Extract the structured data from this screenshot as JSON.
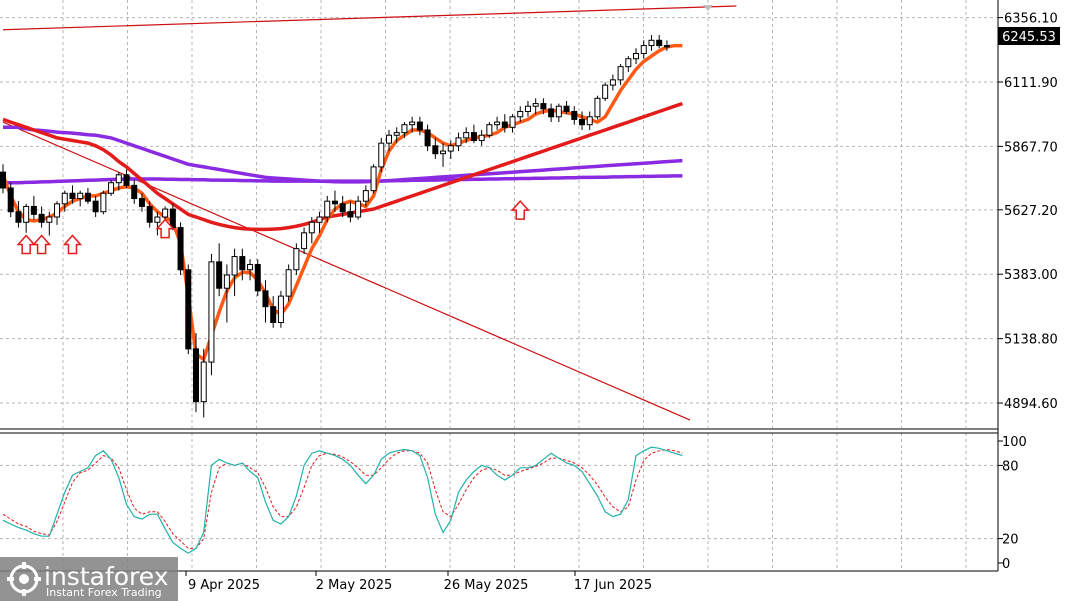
{
  "chart_data": [
    {
      "type": "candlestick",
      "title": "",
      "ylim": [
        4800,
        6400
      ],
      "y_ticks": [
        "6356.10",
        "6111.90",
        "5867.70",
        "5627.20",
        "5383.00",
        "5138.80",
        "4894.60"
      ],
      "current_price": "6245.53",
      "x_labels": [
        "9 Apr 2025",
        "2 May 2025",
        "26 May 2025",
        "17 Jun 2025"
      ],
      "grid": true,
      "candles": [
        {
          "o": 5770,
          "h": 5800,
          "l": 5690,
          "c": 5710
        },
        {
          "o": 5710,
          "h": 5730,
          "l": 5600,
          "c": 5620
        },
        {
          "o": 5620,
          "h": 5660,
          "l": 5560,
          "c": 5580
        },
        {
          "o": 5580,
          "h": 5650,
          "l": 5540,
          "c": 5640
        },
        {
          "o": 5640,
          "h": 5680,
          "l": 5590,
          "c": 5610
        },
        {
          "o": 5610,
          "h": 5640,
          "l": 5560,
          "c": 5580
        },
        {
          "o": 5580,
          "h": 5620,
          "l": 5530,
          "c": 5600
        },
        {
          "o": 5600,
          "h": 5660,
          "l": 5570,
          "c": 5650
        },
        {
          "o": 5650,
          "h": 5700,
          "l": 5620,
          "c": 5690
        },
        {
          "o": 5690,
          "h": 5720,
          "l": 5650,
          "c": 5670
        },
        {
          "o": 5670,
          "h": 5700,
          "l": 5640,
          "c": 5690
        },
        {
          "o": 5690,
          "h": 5710,
          "l": 5650,
          "c": 5660
        },
        {
          "o": 5660,
          "h": 5680,
          "l": 5600,
          "c": 5620
        },
        {
          "o": 5620,
          "h": 5700,
          "l": 5610,
          "c": 5690
        },
        {
          "o": 5690,
          "h": 5740,
          "l": 5680,
          "c": 5730
        },
        {
          "o": 5730,
          "h": 5770,
          "l": 5700,
          "c": 5760
        },
        {
          "o": 5760,
          "h": 5780,
          "l": 5710,
          "c": 5720
        },
        {
          "o": 5720,
          "h": 5740,
          "l": 5650,
          "c": 5670
        },
        {
          "o": 5670,
          "h": 5690,
          "l": 5620,
          "c": 5640
        },
        {
          "o": 5640,
          "h": 5660,
          "l": 5560,
          "c": 5580
        },
        {
          "o": 5580,
          "h": 5620,
          "l": 5530,
          "c": 5600
        },
        {
          "o": 5600,
          "h": 5640,
          "l": 5570,
          "c": 5630
        },
        {
          "o": 5630,
          "h": 5650,
          "l": 5550,
          "c": 5560
        },
        {
          "o": 5560,
          "h": 5580,
          "l": 5380,
          "c": 5400
        },
        {
          "o": 5400,
          "h": 5420,
          "l": 5080,
          "c": 5100
        },
        {
          "o": 5100,
          "h": 5160,
          "l": 4860,
          "c": 4900
        },
        {
          "o": 4900,
          "h": 5100,
          "l": 4840,
          "c": 5050
        },
        {
          "o": 5050,
          "h": 5460,
          "l": 5000,
          "c": 5430
        },
        {
          "o": 5430,
          "h": 5500,
          "l": 5300,
          "c": 5330
        },
        {
          "o": 5330,
          "h": 5420,
          "l": 5200,
          "c": 5380
        },
        {
          "o": 5380,
          "h": 5480,
          "l": 5300,
          "c": 5450
        },
        {
          "o": 5450,
          "h": 5480,
          "l": 5360,
          "c": 5400
        },
        {
          "o": 5400,
          "h": 5440,
          "l": 5360,
          "c": 5420
        },
        {
          "o": 5420,
          "h": 5440,
          "l": 5300,
          "c": 5320
        },
        {
          "o": 5320,
          "h": 5360,
          "l": 5200,
          "c": 5260
        },
        {
          "o": 5260,
          "h": 5300,
          "l": 5180,
          "c": 5200
        },
        {
          "o": 5200,
          "h": 5320,
          "l": 5180,
          "c": 5300
        },
        {
          "o": 5300,
          "h": 5420,
          "l": 5280,
          "c": 5400
        },
        {
          "o": 5400,
          "h": 5500,
          "l": 5380,
          "c": 5480
        },
        {
          "o": 5480,
          "h": 5560,
          "l": 5460,
          "c": 5540
        },
        {
          "o": 5540,
          "h": 5600,
          "l": 5500,
          "c": 5580
        },
        {
          "o": 5580,
          "h": 5620,
          "l": 5540,
          "c": 5600
        },
        {
          "o": 5600,
          "h": 5680,
          "l": 5580,
          "c": 5660
        },
        {
          "o": 5660,
          "h": 5700,
          "l": 5620,
          "c": 5650
        },
        {
          "o": 5650,
          "h": 5680,
          "l": 5600,
          "c": 5620
        },
        {
          "o": 5620,
          "h": 5660,
          "l": 5580,
          "c": 5600
        },
        {
          "o": 5600,
          "h": 5680,
          "l": 5590,
          "c": 5660
        },
        {
          "o": 5660,
          "h": 5720,
          "l": 5640,
          "c": 5700
        },
        {
          "o": 5700,
          "h": 5800,
          "l": 5690,
          "c": 5790
        },
        {
          "o": 5790,
          "h": 5900,
          "l": 5770,
          "c": 5880
        },
        {
          "o": 5880,
          "h": 5930,
          "l": 5850,
          "c": 5910
        },
        {
          "o": 5910,
          "h": 5940,
          "l": 5880,
          "c": 5920
        },
        {
          "o": 5920,
          "h": 5960,
          "l": 5900,
          "c": 5950
        },
        {
          "o": 5950,
          "h": 5980,
          "l": 5920,
          "c": 5960
        },
        {
          "o": 5960,
          "h": 5980,
          "l": 5910,
          "c": 5930
        },
        {
          "o": 5930,
          "h": 5950,
          "l": 5850,
          "c": 5870
        },
        {
          "o": 5870,
          "h": 5900,
          "l": 5820,
          "c": 5840
        },
        {
          "o": 5840,
          "h": 5880,
          "l": 5790,
          "c": 5850
        },
        {
          "o": 5850,
          "h": 5890,
          "l": 5820,
          "c": 5870
        },
        {
          "o": 5870,
          "h": 5920,
          "l": 5850,
          "c": 5900
        },
        {
          "o": 5900,
          "h": 5940,
          "l": 5880,
          "c": 5920
        },
        {
          "o": 5920,
          "h": 5950,
          "l": 5880,
          "c": 5890
        },
        {
          "o": 5890,
          "h": 5930,
          "l": 5870,
          "c": 5910
        },
        {
          "o": 5910,
          "h": 5960,
          "l": 5900,
          "c": 5950
        },
        {
          "o": 5950,
          "h": 5980,
          "l": 5930,
          "c": 5960
        },
        {
          "o": 5960,
          "h": 5990,
          "l": 5920,
          "c": 5940
        },
        {
          "o": 5940,
          "h": 5990,
          "l": 5920,
          "c": 5980
        },
        {
          "o": 5980,
          "h": 6020,
          "l": 5960,
          "c": 6000
        },
        {
          "o": 6000,
          "h": 6040,
          "l": 5980,
          "c": 6020
        },
        {
          "o": 6020,
          "h": 6050,
          "l": 5990,
          "c": 6030
        },
        {
          "o": 6030,
          "h": 6050,
          "l": 5990,
          "c": 6010
        },
        {
          "o": 6010,
          "h": 6030,
          "l": 5960,
          "c": 5980
        },
        {
          "o": 5980,
          "h": 6030,
          "l": 5960,
          "c": 6020
        },
        {
          "o": 6020,
          "h": 6040,
          "l": 5990,
          "c": 6000
        },
        {
          "o": 6000,
          "h": 6020,
          "l": 5950,
          "c": 5970
        },
        {
          "o": 5970,
          "h": 6000,
          "l": 5930,
          "c": 5950
        },
        {
          "o": 5950,
          "h": 6000,
          "l": 5930,
          "c": 5980
        },
        {
          "o": 5980,
          "h": 6060,
          "l": 5970,
          "c": 6050
        },
        {
          "o": 6050,
          "h": 6110,
          "l": 6040,
          "c": 6100
        },
        {
          "o": 6100,
          "h": 6140,
          "l": 6080,
          "c": 6120
        },
        {
          "o": 6120,
          "h": 6180,
          "l": 6100,
          "c": 6170
        },
        {
          "o": 6170,
          "h": 6210,
          "l": 6150,
          "c": 6200
        },
        {
          "o": 6200,
          "h": 6240,
          "l": 6180,
          "c": 6220
        },
        {
          "o": 6220,
          "h": 6270,
          "l": 6200,
          "c": 6250
        },
        {
          "o": 6250,
          "h": 6290,
          "l": 6230,
          "c": 6270
        },
        {
          "o": 6270,
          "h": 6290,
          "l": 6240,
          "c": 6250
        },
        {
          "o": 6250,
          "h": 6270,
          "l": 6230,
          "c": 6245
        }
      ],
      "ma_fast": [
        5760,
        5680,
        5620,
        5590,
        5585,
        5590,
        5600,
        5615,
        5640,
        5660,
        5670,
        5680,
        5680,
        5690,
        5700,
        5710,
        5715,
        5710,
        5690,
        5650,
        5620,
        5600,
        5580,
        5500,
        5300,
        5080,
        5060,
        5150,
        5240,
        5320,
        5370,
        5390,
        5390,
        5360,
        5310,
        5250,
        5230,
        5270,
        5340,
        5410,
        5480,
        5530,
        5590,
        5630,
        5650,
        5660,
        5650,
        5640,
        5680,
        5780,
        5850,
        5890,
        5910,
        5930,
        5930,
        5920,
        5900,
        5880,
        5870,
        5880,
        5890,
        5900,
        5905,
        5910,
        5920,
        5940,
        5950,
        5960,
        5970,
        5990,
        6000,
        6005,
        6000,
        5995,
        5990,
        5980,
        5970,
        5960,
        5980,
        6030,
        6080,
        6120,
        6160,
        6190,
        6210,
        6230,
        6245,
        6250,
        6250
      ],
      "ma_red": [
        5970,
        5960,
        5950,
        5940,
        5930,
        5920,
        5910,
        5900,
        5895,
        5890,
        5885,
        5880,
        5870,
        5855,
        5835,
        5810,
        5790,
        5765,
        5740,
        5715,
        5690,
        5670,
        5650,
        5630,
        5610,
        5600,
        5590,
        5580,
        5572,
        5565,
        5560,
        5556,
        5554,
        5553,
        5553,
        5554,
        5556,
        5560,
        5565,
        5572,
        5580,
        5590,
        5600,
        5605,
        5610,
        5615,
        5620,
        5625,
        5630,
        5640,
        5650,
        5660,
        5670,
        5680,
        5690,
        5700,
        5710,
        5720,
        5730,
        5740,
        5750,
        5760,
        5770,
        5780,
        5790,
        5800,
        5810,
        5820,
        5830,
        5840,
        5850,
        5860,
        5870,
        5880,
        5890,
        5900,
        5910,
        5920,
        5930,
        5940,
        5950,
        5960,
        5970,
        5980,
        5990,
        6000,
        6010,
        6020,
        6030
      ],
      "ma_purple1": [
        5940,
        5940,
        5940,
        5935,
        5930,
        5928,
        5925,
        5922,
        5920,
        5918,
        5915,
        5912,
        5910,
        5905,
        5900,
        5890,
        5880,
        5870,
        5860,
        5850,
        5840,
        5830,
        5820,
        5810,
        5800,
        5795,
        5790,
        5785,
        5780,
        5775,
        5770,
        5765,
        5760,
        5755,
        5750,
        5748,
        5746,
        5744,
        5742,
        5740,
        5738,
        5736,
        5735,
        5734,
        5733,
        5733,
        5733,
        5734,
        5735,
        5736,
        5738,
        5740,
        5742,
        5744,
        5746,
        5748,
        5750,
        5752,
        5754,
        5756,
        5758,
        5760,
        5762,
        5764,
        5766,
        5768,
        5770,
        5772,
        5774,
        5776,
        5778,
        5780,
        5782,
        5784,
        5786,
        5788,
        5790,
        5792,
        5794,
        5796,
        5798,
        5800,
        5802,
        5804,
        5806,
        5808,
        5810,
        5812,
        5814
      ],
      "ma_purple2": [
        5730,
        5730,
        5730,
        5731,
        5732,
        5733,
        5734,
        5735,
        5736,
        5737,
        5738,
        5739,
        5740,
        5741,
        5742,
        5743,
        5744,
        5744,
        5744,
        5744,
        5744,
        5743,
        5743,
        5742,
        5742,
        5741,
        5741,
        5740,
        5740,
        5739,
        5739,
        5738,
        5738,
        5737,
        5737,
        5736,
        5736,
        5736,
        5736,
        5736,
        5736,
        5736,
        5736,
        5736,
        5736,
        5736,
        5736,
        5736,
        5736,
        5737,
        5737,
        5738,
        5738,
        5739,
        5739,
        5740,
        5740,
        5741,
        5741,
        5742,
        5742,
        5743,
        5743,
        5744,
        5744,
        5745,
        5745,
        5746,
        5746,
        5747,
        5747,
        5748,
        5748,
        5749,
        5749,
        5750,
        5750,
        5751,
        5751,
        5752,
        5752,
        5753,
        5753,
        5754,
        5754,
        5755,
        5755,
        5756,
        5756
      ],
      "trendline_up": {
        "from": [
          0,
          6310
        ],
        "to": [
          95,
          6400
        ]
      },
      "trendline_down": {
        "from": [
          0,
          5960
        ],
        "to": [
          89,
          4830
        ]
      },
      "arrows": [
        {
          "i": 3,
          "v": 5530
        },
        {
          "i": 5,
          "v": 5530
        },
        {
          "i": 9,
          "v": 5530
        },
        {
          "i": 21,
          "v": 5590
        },
        {
          "i": 67,
          "v": 5660
        }
      ]
    },
    {
      "type": "line",
      "title": "",
      "ylim": [
        0,
        100
      ],
      "y_ticks": [
        "100",
        "80",
        "20",
        "0"
      ],
      "levels": [
        80,
        20
      ],
      "series": [
        {
          "values": [
            35,
            32,
            29,
            27,
            24,
            22,
            22,
            40,
            58,
            72,
            75,
            78,
            88,
            92,
            85,
            70,
            48,
            38,
            36,
            40,
            40,
            28,
            17,
            12,
            8,
            12,
            25,
            80,
            85,
            82,
            80,
            82,
            75,
            70,
            50,
            35,
            32,
            38,
            55,
            80,
            90,
            92,
            90,
            88,
            85,
            80,
            72,
            65,
            72,
            85,
            90,
            92,
            93,
            92,
            88,
            70,
            40,
            25,
            35,
            58,
            68,
            75,
            80,
            78,
            72,
            68,
            72,
            78,
            78,
            80,
            85,
            90,
            86,
            82,
            80,
            75,
            65,
            55,
            42,
            38,
            40,
            52,
            88,
            92,
            95,
            94,
            92,
            90,
            88
          ]
        },
        {
          "values": [
            40,
            36,
            32,
            30,
            26,
            24,
            23,
            34,
            50,
            66,
            74,
            76,
            82,
            88,
            86,
            78,
            60,
            45,
            40,
            42,
            42,
            34,
            24,
            18,
            12,
            12,
            20,
            58,
            78,
            82,
            80,
            82,
            78,
            74,
            62,
            46,
            38,
            38,
            46,
            62,
            80,
            88,
            90,
            89,
            87,
            83,
            78,
            72,
            72,
            78,
            85,
            90,
            92,
            92,
            90,
            82,
            60,
            42,
            38,
            48,
            60,
            70,
            76,
            78,
            76,
            72,
            72,
            75,
            77,
            79,
            82,
            86,
            86,
            84,
            82,
            78,
            72,
            64,
            54,
            46,
            42,
            46,
            68,
            84,
            90,
            92,
            93,
            92,
            90
          ]
        }
      ]
    }
  ],
  "watermark": {
    "brand": "instaforex",
    "tagline": "Instant Forex Trading"
  },
  "colors": {
    "bull": "#ffffff",
    "bear": "#000000",
    "ma_fast": "#ff5a14",
    "ma_red": "#e31b1b",
    "ma_purple": "#8a2be2",
    "trendline": "#cc1010",
    "arrow": "#e31b1b",
    "stoch_main": "#20b2aa",
    "stoch_signal": "#e31b1b",
    "grid": "#b5b5b5"
  }
}
